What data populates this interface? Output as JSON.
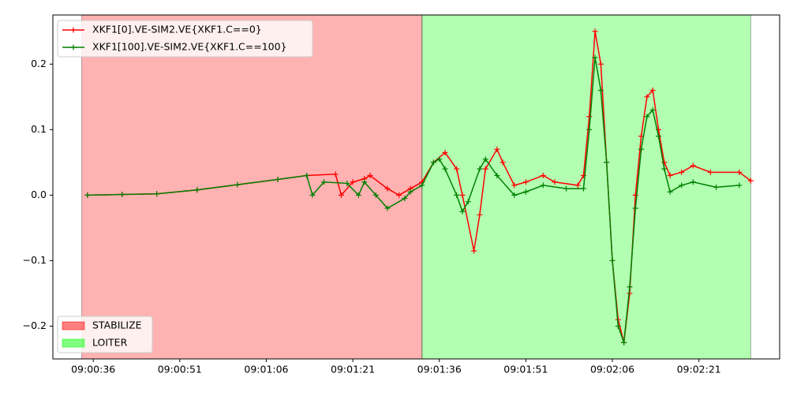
{
  "chart_data": {
    "type": "line",
    "xlim": [
      "09:00:29",
      "09:02:35"
    ],
    "xticks": [
      "09:00:36",
      "09:00:51",
      "09:01:06",
      "09:01:21",
      "09:01:36",
      "09:01:51",
      "09:02:06",
      "09:02:21"
    ],
    "ylim": [
      -0.25,
      0.275
    ],
    "yticks": [
      {
        "value": -0.2,
        "label": "−0.2"
      },
      {
        "value": -0.1,
        "label": "−0.1"
      },
      {
        "value": 0,
        "label": "0.0"
      },
      {
        "value": 0.1,
        "label": "0.1"
      },
      {
        "value": 0.2,
        "label": "0.2"
      }
    ],
    "legend": "upper left",
    "regions_legend": "lower left",
    "regions": [
      {
        "name": "STABILIZE",
        "color": "#ff0000",
        "start": "09:00:34",
        "end": "09:01:33"
      },
      {
        "name": "LOITER",
        "color": "#00ff00",
        "start": "09:01:33",
        "end": "09:02:30"
      }
    ],
    "series": [
      {
        "name": "XKF1[0].VE-SIM2.VE{XKF1.C==0}",
        "color": "#ff0000",
        "x": [
          "09:00:35",
          "09:00:41",
          "09:00:47",
          "09:00:54",
          "09:01:01",
          "09:01:08",
          "09:01:13",
          "09:01:18",
          "09:01:19",
          "09:01:21",
          "09:01:23",
          "09:01:24",
          "09:01:27",
          "09:01:29",
          "09:01:31",
          "09:01:33",
          "09:01:35",
          "09:01:37",
          "09:01:39",
          "09:01:40",
          "09:01:42",
          "09:01:43",
          "09:01:44",
          "09:01:46",
          "09:01:47",
          "09:01:49",
          "09:01:51",
          "09:01:54",
          "09:01:56",
          "09:02:00",
          "09:02:01",
          "09:02:02",
          "09:02:03",
          "09:02:04",
          "09:02:05",
          "09:02:06",
          "09:02:07",
          "09:02:08",
          "09:02:09",
          "09:02:10",
          "09:02:11",
          "09:02:12",
          "09:02:13",
          "09:02:14",
          "09:02:15",
          "09:02:16",
          "09:02:18",
          "09:02:20",
          "09:02:23",
          "09:02:28",
          "09:02:30"
        ],
        "values": [
          0.0,
          0.001,
          0.002,
          0.008,
          0.016,
          0.024,
          0.03,
          0.032,
          0.0,
          0.02,
          0.025,
          0.03,
          0.01,
          0.0,
          0.01,
          0.02,
          0.05,
          0.065,
          0.04,
          0.0,
          -0.085,
          -0.03,
          0.04,
          0.07,
          0.05,
          0.015,
          0.02,
          0.03,
          0.02,
          0.015,
          0.03,
          0.12,
          0.25,
          0.2,
          0.05,
          -0.1,
          -0.19,
          -0.225,
          -0.15,
          0.0,
          0.09,
          0.15,
          0.16,
          0.1,
          0.05,
          0.03,
          0.035,
          0.045,
          0.035,
          0.035,
          0.022
        ]
      },
      {
        "name": "XKF1[100].VE-SIM2.VE{XKF1.C==100}",
        "color": "#008000",
        "x": [
          "09:00:35",
          "09:00:41",
          "09:00:47",
          "09:00:54",
          "09:01:01",
          "09:01:08",
          "09:01:13",
          "09:01:14",
          "09:01:16",
          "09:01:20",
          "09:01:22",
          "09:01:23",
          "09:01:25",
          "09:01:27",
          "09:01:30",
          "09:01:31",
          "09:01:33",
          "09:01:35",
          "09:01:36",
          "09:01:37",
          "09:01:39",
          "09:01:40",
          "09:01:41",
          "09:01:43",
          "09:01:44",
          "09:01:46",
          "09:01:49",
          "09:01:51",
          "09:01:54",
          "09:01:58",
          "09:02:01",
          "09:02:02",
          "09:02:03",
          "09:02:04",
          "09:02:05",
          "09:02:06",
          "09:02:07",
          "09:02:08",
          "09:02:09",
          "09:02:10",
          "09:02:11",
          "09:02:12",
          "09:02:13",
          "09:02:14",
          "09:02:15",
          "09:02:16",
          "09:02:18",
          "09:02:20",
          "09:02:24",
          "09:02:28"
        ],
        "values": [
          0.0,
          0.001,
          0.002,
          0.008,
          0.016,
          0.024,
          0.03,
          0.0,
          0.02,
          0.018,
          0.0,
          0.02,
          0.0,
          -0.02,
          -0.005,
          0.005,
          0.015,
          0.05,
          0.055,
          0.04,
          0.0,
          -0.025,
          -0.01,
          0.04,
          0.055,
          0.03,
          0.0,
          0.005,
          0.015,
          0.01,
          0.01,
          0.1,
          0.21,
          0.16,
          0.05,
          -0.1,
          -0.2,
          -0.225,
          -0.14,
          -0.02,
          0.07,
          0.12,
          0.13,
          0.09,
          0.04,
          0.005,
          0.015,
          0.02,
          0.012,
          0.015
        ]
      }
    ]
  }
}
